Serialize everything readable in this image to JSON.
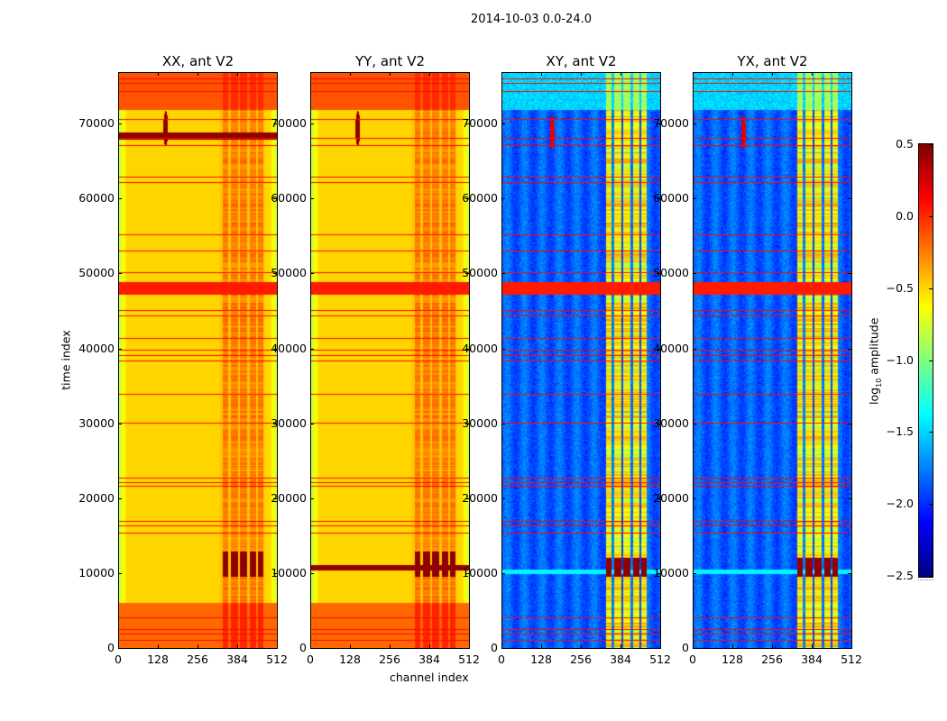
{
  "chart_data": {
    "type": "heatmap",
    "suptitle": "2014-10-03 0.0-24.0",
    "xlabel": "channel index",
    "ylabel": "time index",
    "xlim": [
      0,
      512
    ],
    "ylim": [
      0,
      77000
    ],
    "xticks": [
      "0",
      "128",
      "256",
      "384",
      "512"
    ],
    "xtick_values": [
      0,
      128,
      256,
      384,
      512
    ],
    "yticks": [
      "0",
      "10000",
      "20000",
      "30000",
      "40000",
      "50000",
      "60000",
      "70000"
    ],
    "ytick_values": [
      0,
      10000,
      20000,
      30000,
      40000,
      50000,
      60000,
      70000
    ],
    "panels": [
      {
        "title": "XX, ant V2",
        "kind": "auto"
      },
      {
        "title": "YY, ant V2",
        "kind": "auto"
      },
      {
        "title": "XY, ant V2",
        "kind": "cross"
      },
      {
        "title": "YX, ant V2",
        "kind": "cross"
      }
    ],
    "flagged_rows": [
      1200,
      2000,
      2700,
      4200,
      15500,
      16500,
      17100,
      21800,
      22200,
      22800,
      30200,
      34000,
      38500,
      39200,
      40000,
      41500,
      44500,
      45200,
      50300,
      53200,
      55400,
      62300,
      63000,
      67300,
      68200,
      70800,
      74500,
      75500,
      76200
    ],
    "bright_band": [
      47300,
      49000
    ],
    "active_channels": [
      320,
      470
    ],
    "colorbar": {
      "label_prefix": "log",
      "label_sub": "10",
      "label_suffix": " amplitude",
      "colormap": "jet",
      "range": [
        -2.5,
        0.5
      ],
      "ticks": [
        "0.5",
        "0.0",
        "−0.5",
        "−1.0",
        "−1.5",
        "−2.0",
        "−2.5"
      ],
      "tick_values": [
        0.5,
        0.0,
        -0.5,
        -1.0,
        -1.5,
        -2.0,
        -2.5
      ]
    }
  }
}
